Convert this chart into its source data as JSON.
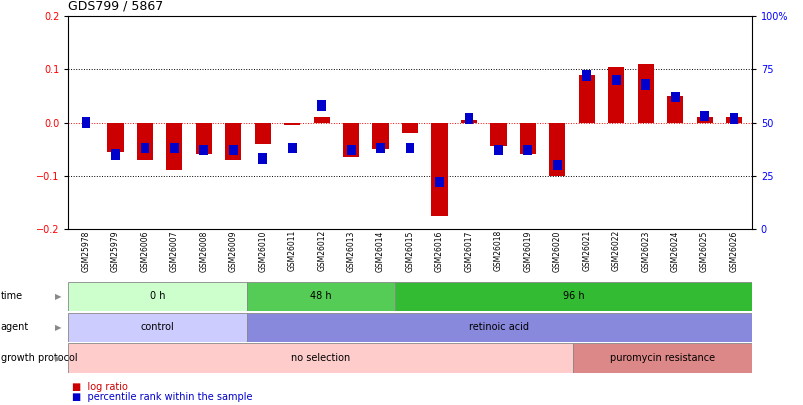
{
  "title": "GDS799 / 5867",
  "samples": [
    "GSM25978",
    "GSM25979",
    "GSM26006",
    "GSM26007",
    "GSM26008",
    "GSM26009",
    "GSM26010",
    "GSM26011",
    "GSM26012",
    "GSM26013",
    "GSM26014",
    "GSM26015",
    "GSM26016",
    "GSM26017",
    "GSM26018",
    "GSM26019",
    "GSM26020",
    "GSM26021",
    "GSM26022",
    "GSM26023",
    "GSM26024",
    "GSM26025",
    "GSM26026"
  ],
  "log_ratio": [
    0.0,
    -0.055,
    -0.07,
    -0.09,
    -0.06,
    -0.07,
    -0.04,
    -0.005,
    0.01,
    -0.065,
    -0.05,
    -0.02,
    -0.175,
    0.005,
    -0.045,
    -0.06,
    -0.1,
    0.09,
    0.105,
    0.11,
    0.05,
    0.01,
    0.01
  ],
  "percentile_rank": [
    50,
    35,
    38,
    38,
    37,
    37,
    33,
    38,
    58,
    37,
    38,
    38,
    22,
    52,
    37,
    37,
    30,
    72,
    70,
    68,
    62,
    53,
    52
  ],
  "ylim_left": [
    -0.2,
    0.2
  ],
  "ylim_right": [
    0,
    100
  ],
  "left_ticks": [
    -0.2,
    -0.1,
    0.0,
    0.1,
    0.2
  ],
  "right_ticks": [
    0,
    25,
    50,
    75,
    100
  ],
  "right_tick_labels": [
    "0",
    "25",
    "50",
    "75",
    "100%"
  ],
  "log_ratio_color": "#cc0000",
  "percentile_color": "#0000cc",
  "time_groups": [
    {
      "label": "0 h",
      "start": 0,
      "end": 6,
      "color": "#ccffcc"
    },
    {
      "label": "48 h",
      "start": 6,
      "end": 11,
      "color": "#55cc55"
    },
    {
      "label": "96 h",
      "start": 11,
      "end": 23,
      "color": "#33bb33"
    }
  ],
  "agent_groups": [
    {
      "label": "control",
      "start": 0,
      "end": 6,
      "color": "#ccccff"
    },
    {
      "label": "retinoic acid",
      "start": 6,
      "end": 23,
      "color": "#8888dd"
    }
  ],
  "growth_groups": [
    {
      "label": "no selection",
      "start": 0,
      "end": 17,
      "color": "#ffcccc"
    },
    {
      "label": "puromycin resistance",
      "start": 17,
      "end": 23,
      "color": "#dd8888"
    }
  ],
  "row_labels": [
    "time",
    "agent",
    "growth protocol"
  ],
  "legend_items": [
    {
      "label": "log ratio",
      "color": "#cc0000"
    },
    {
      "label": "percentile rank within the sample",
      "color": "#0000cc"
    }
  ],
  "background_color": "#ffffff"
}
